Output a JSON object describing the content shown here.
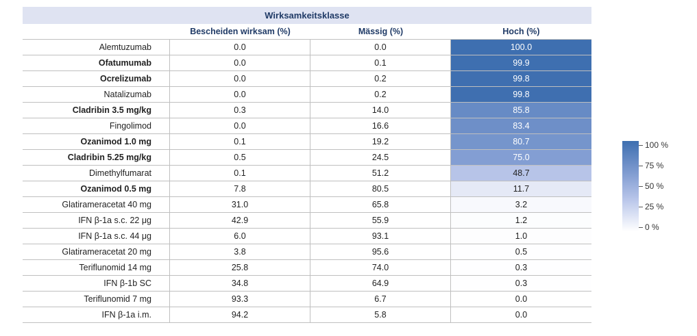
{
  "chart_data": {
    "type": "table",
    "title": "Wirksamkeitsklasse",
    "columns": [
      "Bescheiden wirksam (%)",
      "Mässig (%)",
      "Hoch (%)"
    ],
    "rows": [
      {
        "name": "Alemtuzumab",
        "bold": false,
        "values": [
          "0.0",
          "0.0",
          "100.0"
        ],
        "hoch": 100.0
      },
      {
        "name": "Ofatumumab",
        "bold": true,
        "values": [
          "0.0",
          "0.1",
          "99.9"
        ],
        "hoch": 99.9
      },
      {
        "name": "Ocrelizumab",
        "bold": true,
        "values": [
          "0.0",
          "0.2",
          "99.8"
        ],
        "hoch": 99.8
      },
      {
        "name": "Natalizumab",
        "bold": false,
        "values": [
          "0.0",
          "0.2",
          "99.8"
        ],
        "hoch": 99.8
      },
      {
        "name": "Cladribin 3.5 mg/kg",
        "bold": true,
        "values": [
          "0.3",
          "14.0",
          "85.8"
        ],
        "hoch": 85.8
      },
      {
        "name": "Fingolimod",
        "bold": false,
        "values": [
          "0.0",
          "16.6",
          "83.4"
        ],
        "hoch": 83.4
      },
      {
        "name": "Ozanimod 1.0 mg",
        "bold": true,
        "values": [
          "0.1",
          "19.2",
          "80.7"
        ],
        "hoch": 80.7
      },
      {
        "name": "Cladribin 5.25 mg/kg",
        "bold": true,
        "values": [
          "0.5",
          "24.5",
          "75.0"
        ],
        "hoch": 75.0
      },
      {
        "name": "Dimethylfumarat",
        "bold": false,
        "values": [
          "0.1",
          "51.2",
          "48.7"
        ],
        "hoch": 48.7
      },
      {
        "name": "Ozanimod 0.5 mg",
        "bold": true,
        "values": [
          "7.8",
          "80.5",
          "11.7"
        ],
        "hoch": 11.7
      },
      {
        "name": "Glatirameracetat 40 mg",
        "bold": false,
        "values": [
          "31.0",
          "65.8",
          "3.2"
        ],
        "hoch": 3.2
      },
      {
        "name": "IFN β-1a s.c. 22 μg",
        "bold": false,
        "values": [
          "42.9",
          "55.9",
          "1.2"
        ],
        "hoch": 1.2
      },
      {
        "name": "IFN β-1a s.c. 44 μg",
        "bold": false,
        "values": [
          "6.0",
          "93.1",
          "1.0"
        ],
        "hoch": 1.0
      },
      {
        "name": "Glatirameracetat 20 mg",
        "bold": false,
        "values": [
          "3.8",
          "95.6",
          "0.5"
        ],
        "hoch": 0.5
      },
      {
        "name": "Teriflunomid 14 mg",
        "bold": false,
        "values": [
          "25.8",
          "74.0",
          "0.3"
        ],
        "hoch": 0.3
      },
      {
        "name": "IFN β-1b SC",
        "bold": false,
        "values": [
          "34.8",
          "64.9",
          "0.3"
        ],
        "hoch": 0.3
      },
      {
        "name": "Teriflunomid 7 mg",
        "bold": false,
        "values": [
          "93.3",
          "6.7",
          "0.0"
        ],
        "hoch": 0.0
      },
      {
        "name": "IFN β-1a i.m.",
        "bold": false,
        "values": [
          "94.2",
          "5.8",
          "0.0"
        ],
        "hoch": 0.0
      }
    ],
    "colorscale": {
      "min": 0,
      "max": 100,
      "low_color": "#ffffff",
      "high_color": "#3e6fb0"
    },
    "legend": {
      "labels": [
        "100 %",
        "75 %",
        "50 %",
        "25 %",
        "0 %"
      ],
      "values": [
        100,
        75,
        50,
        25,
        0
      ],
      "placement": "right"
    }
  }
}
